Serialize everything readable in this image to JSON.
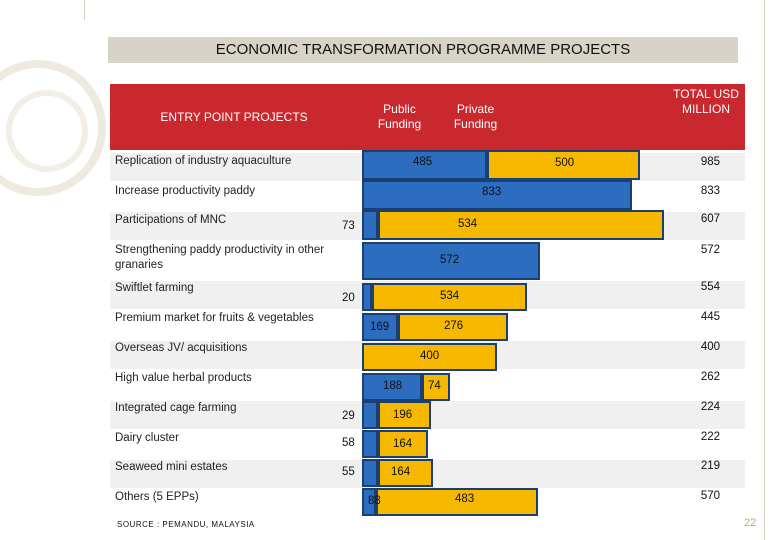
{
  "chart_data": {
    "type": "bar",
    "title": "ECONOMIC TRANSFORMATION PROGRAMME PROJECTS",
    "header": {
      "entry_col": "ENTRY POINT PROJECTS",
      "public": "Public Funding",
      "private": "Private Funding",
      "total": "TOTAL USD MILLION"
    },
    "rows": [
      {
        "label": "Replication of industry aquaculture",
        "public": "485",
        "private": "500",
        "total": "985"
      },
      {
        "label": "Increase productivity paddy",
        "public": "833",
        "private": "",
        "total": "833"
      },
      {
        "label": "Participations of MNC",
        "public": "73",
        "private": "534",
        "total": "607"
      },
      {
        "label": "Strengthening paddy productivity in other granaries",
        "public": "572",
        "private": "",
        "total": "572"
      },
      {
        "label": "Swiftlet farming",
        "public": "20",
        "private": "534",
        "total": "554"
      },
      {
        "label": "Premium market for fruits & vegetables",
        "public": "169",
        "private": "276",
        "total": "445"
      },
      {
        "label": "Overseas JV/ acquisitions",
        "public": "",
        "private": "400",
        "total": "400"
      },
      {
        "label": "High value herbal products",
        "public": "188",
        "private": "74",
        "total": "262"
      },
      {
        "label": "Integrated cage farming",
        "public": "29",
        "private": "196",
        "total": "224"
      },
      {
        "label": "Dairy cluster",
        "public": "58",
        "private": "164",
        "total": "222"
      },
      {
        "label": "Seaweed mini estates",
        "public": "55",
        "private": "164",
        "total": "219"
      },
      {
        "label": "Others (5 EPPs)",
        "public": "88",
        "private": "483",
        "total": "570"
      }
    ],
    "source": "SOURCE : PEMANDU, MALAYSIA",
    "page_number": "22"
  }
}
